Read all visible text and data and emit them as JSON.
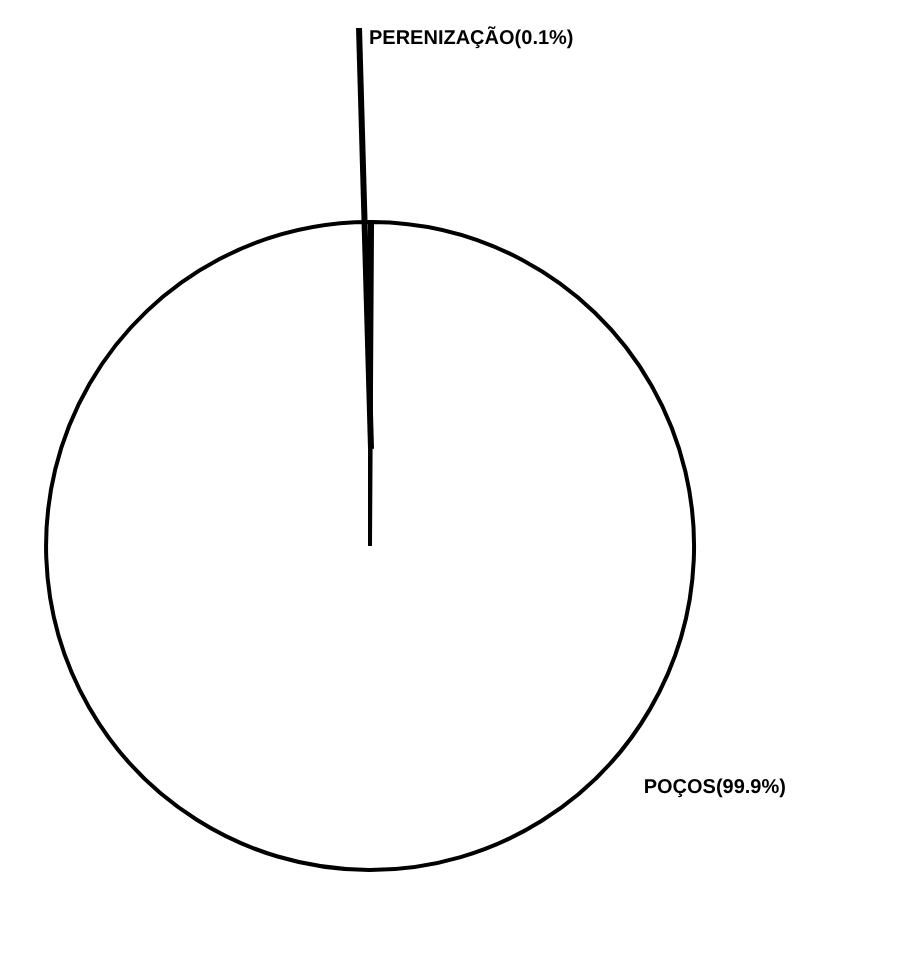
{
  "chart_data": {
    "type": "pie",
    "categories": [
      "PERENIZAÇÃO",
      "POÇOS"
    ],
    "values": [
      0.1,
      99.9
    ],
    "value_labels": [
      "(0.1%)",
      "(99.9%)"
    ],
    "colors": [
      "#ffffff",
      "#ffffff"
    ]
  }
}
